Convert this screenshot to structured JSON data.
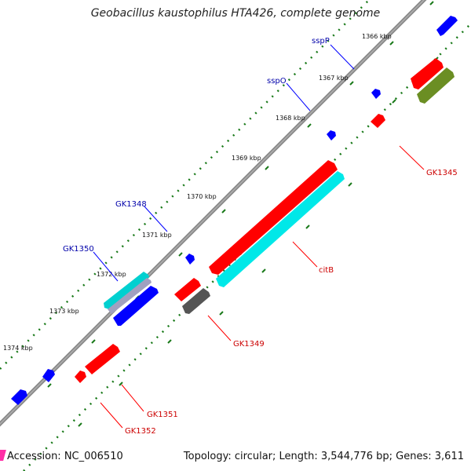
{
  "title": "Geobacillus kaustophilus HTA426, complete genome",
  "footer": {
    "accession": "Accession: NC_006510",
    "summary": "Topology: circular; Length: 3,544,776 bp; Genes: 3,611"
  },
  "colors": {
    "backbone": "#888888",
    "ruler": "#1a7a1a",
    "forward_blue": "#0000ff",
    "reverse_red": "#ff0000",
    "cyan": "#00e0e0",
    "olive": "#6b8e23",
    "gray": "#555555",
    "accession_marker": "#ff2ea6"
  },
  "ruler_ticks": [
    "1366 kbp",
    "1367 kbp",
    "1368 kbp",
    "1369 kbp",
    "1370 kbp",
    "1371 kbp",
    "1372 kbp",
    "1373 kbp",
    "1374 kbp"
  ],
  "gene_labels": [
    {
      "text": "sspP",
      "strand": "forward"
    },
    {
      "text": "sspO",
      "strand": "forward"
    },
    {
      "text": "GK1348",
      "strand": "forward"
    },
    {
      "text": "GK1350",
      "strand": "forward"
    },
    {
      "text": "GK1345",
      "strand": "reverse"
    },
    {
      "text": "citB",
      "strand": "reverse"
    },
    {
      "text": "GK1349",
      "strand": "reverse"
    },
    {
      "text": "GK1351",
      "strand": "reverse"
    },
    {
      "text": "GK1352",
      "strand": "reverse"
    }
  ]
}
